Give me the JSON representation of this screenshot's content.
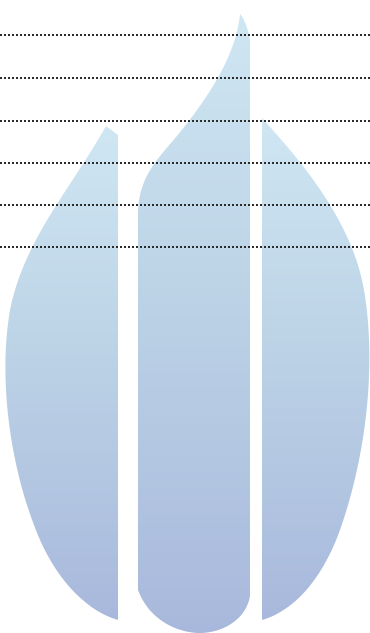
{
  "watermark": {
    "icon": "flame-logo-icon",
    "colors": {
      "top": "#cfe6f3",
      "mid": "#bcd3e6",
      "bottom": "#a8b8dc"
    }
  },
  "form": {
    "dotted_lines_count": 6,
    "line_color": "#2b2b2b"
  }
}
